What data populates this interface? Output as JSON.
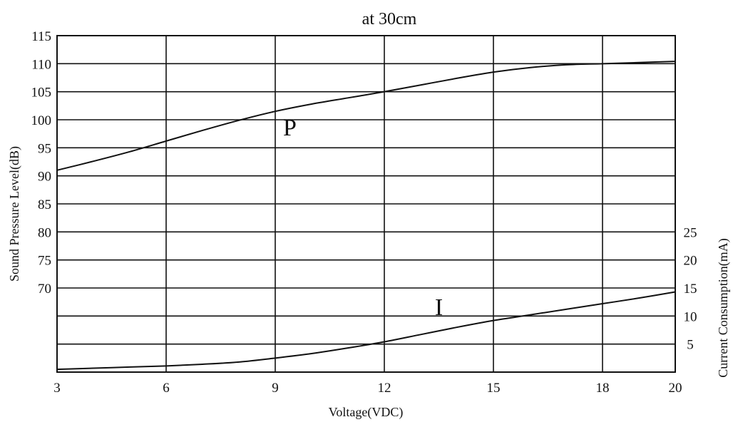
{
  "chart_data": {
    "type": "line",
    "title": "at 30cm",
    "xlabel": "Voltage(VDC)",
    "ylabel_left": "Sound Pressure Level(dB)",
    "ylabel_right": "Current Consumption(mA)",
    "x_ticks": [
      "3",
      "6",
      "9",
      "12",
      "15",
      "18",
      "20"
    ],
    "x_grid_values": [
      3,
      6,
      9,
      12,
      15,
      18,
      20
    ],
    "y_left_ticks": [
      "115",
      "110",
      "105",
      "100",
      "95",
      "90",
      "85",
      "80",
      "75",
      "70"
    ],
    "y_right_ticks": [
      "25",
      "20",
      "15",
      "10",
      "5"
    ],
    "xlim": [
      3,
      20
    ],
    "ylim_left": [
      55,
      115
    ],
    "ylim_right": [
      0,
      25
    ],
    "grid": true,
    "series": [
      {
        "name": "P",
        "axis": "left",
        "x": [
          3,
          4,
          5,
          6,
          7,
          8,
          9,
          10,
          11,
          12,
          13,
          14,
          15,
          16,
          17,
          18,
          19,
          20
        ],
        "y": [
          91,
          92.6,
          94.3,
          96.2,
          98.1,
          99.9,
          101.5,
          102.8,
          103.9,
          105,
          106.2,
          107.4,
          108.5,
          109.3,
          109.8,
          110,
          110.2,
          110.4
        ]
      },
      {
        "name": "I",
        "axis": "right",
        "x": [
          3,
          4,
          5,
          6,
          7,
          8,
          9,
          10,
          11,
          12,
          13,
          14,
          15,
          16,
          17,
          18,
          19,
          20
        ],
        "y": [
          0.5,
          0.7,
          0.9,
          1.1,
          1.4,
          1.8,
          2.5,
          3.3,
          4.3,
          5.4,
          6.7,
          8.0,
          9.2,
          10.2,
          11.2,
          12.2,
          13.2,
          14.3
        ]
      }
    ]
  }
}
